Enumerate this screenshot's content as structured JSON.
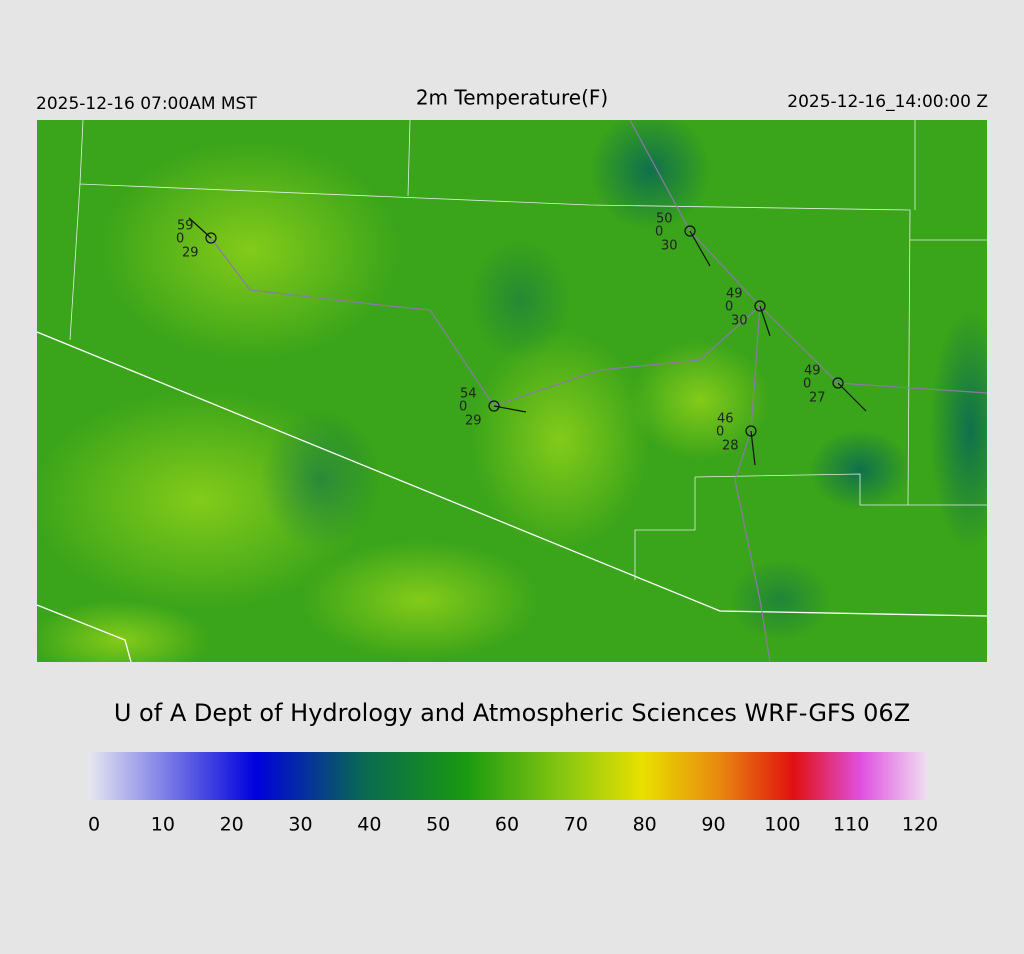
{
  "header": {
    "left": "2025-12-16 07:00AM MST",
    "title": "2m Temperature(F)",
    "right": "2025-12-16_14:00:00 Z"
  },
  "stations": [
    {
      "temperature": 59,
      "middle": 0,
      "dewpoint": 29
    },
    {
      "temperature": 50,
      "middle": 0,
      "dewpoint": 30
    },
    {
      "temperature": 49,
      "middle": 0,
      "dewpoint": 30
    },
    {
      "temperature": 49,
      "middle": 0,
      "dewpoint": 27
    },
    {
      "temperature": 54,
      "middle": 0,
      "dewpoint": 29
    },
    {
      "temperature": 46,
      "middle": 0,
      "dewpoint": 28
    }
  ],
  "credit": "U of A Dept of Hydrology and Atmospheric Sciences WRF-GFS 06Z",
  "colorbar": {
    "ticks": [
      0,
      10,
      20,
      30,
      40,
      50,
      60,
      70,
      80,
      90,
      100,
      110,
      120
    ]
  }
}
